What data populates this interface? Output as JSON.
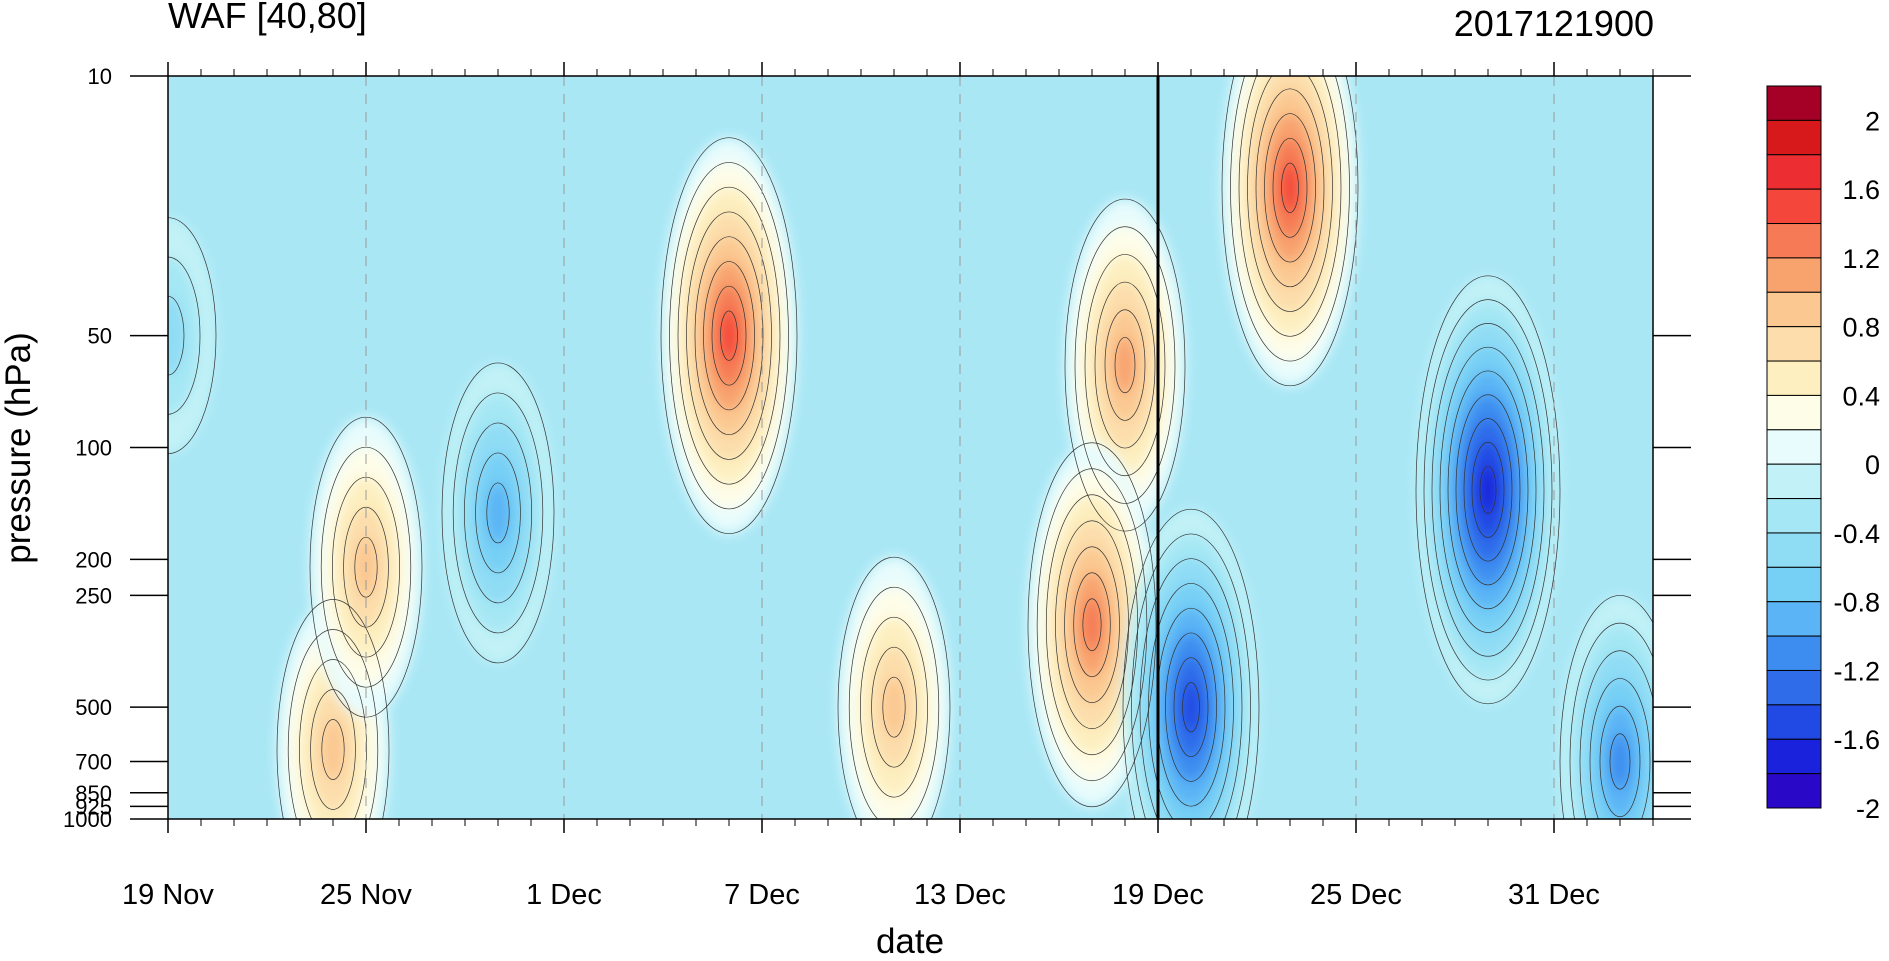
{
  "chart_data": {
    "type": "heatmap",
    "subtype": "filled-contour time-pressure cross-section",
    "title_left": "WAF [40,80]",
    "title_right": "2017121900",
    "xlabel": "date",
    "ylabel": "pressure (hPa)",
    "y_scale": "log",
    "y_inverted": true,
    "y_ticks": [
      10,
      50,
      100,
      200,
      250,
      500,
      700,
      850,
      925,
      1000
    ],
    "y_tick_labels": [
      "10",
      "50",
      "100",
      "200",
      "250",
      "500",
      "700",
      "850",
      "925",
      "1000"
    ],
    "x_ticks": [
      "19 Nov",
      "25 Nov",
      "1 Dec",
      "7 Dec",
      "13 Dec",
      "19 Dec",
      "25 Dec",
      "31 Dec"
    ],
    "x_start": "2017-11-19",
    "x_end": "2018-01-03",
    "analysis_line_date": "19 Dec",
    "grid": "dashed vertical lines at labelled dates",
    "colorbar": {
      "position": "right",
      "labels": [
        "2",
        "1.6",
        "1.2",
        "0.8",
        "0.4",
        "0",
        "-0.4",
        "-0.8",
        "-1.2",
        "-1.6",
        "-2"
      ],
      "levels": [
        2.2,
        2.0,
        1.8,
        1.6,
        1.4,
        1.2,
        1.0,
        0.8,
        0.6,
        0.4,
        0.2,
        0.0,
        -0.2,
        -0.4,
        -0.6,
        -0.8,
        -1.0,
        -1.2,
        -1.4,
        -1.6,
        -1.8,
        -2.0,
        -2.2
      ],
      "colors": [
        "#a50026",
        "#d7191c",
        "#ec2d32",
        "#f4463b",
        "#f67a55",
        "#f8a26e",
        "#fbc891",
        "#fcddab",
        "#fdefc0",
        "#fefde8",
        "#e8fcfd",
        "#c2f2f7",
        "#a5e7f4",
        "#8fdcf5",
        "#76cff5",
        "#5ab4f5",
        "#3d8df0",
        "#2f6cea",
        "#2149e4",
        "#1b22dc",
        "#2a08c8"
      ]
    },
    "features": [
      {
        "x": "2017-11-29",
        "p": 150,
        "value": -1.0
      },
      {
        "x": "2017-12-06",
        "p": 50,
        "value": 1.5
      },
      {
        "x": "2017-12-18",
        "p": 60,
        "value": 1.1
      },
      {
        "x": "2017-12-17",
        "p": 300,
        "value": 1.4
      },
      {
        "x": "2017-12-20",
        "p": 500,
        "value": -1.5
      },
      {
        "x": "2017-12-23",
        "p": 20,
        "value": 1.5
      },
      {
        "x": "2017-12-29",
        "p": 130,
        "value": -1.8
      },
      {
        "x": "2017-11-24",
        "p": 650,
        "value": 1.0
      },
      {
        "x": "2017-11-25",
        "p": 210,
        "value": 0.9
      },
      {
        "x": "2017-12-11",
        "p": 500,
        "value": 1.0
      },
      {
        "x": "2018-01-02",
        "p": 700,
        "value": -1.2
      },
      {
        "x": "2017-11-19",
        "p": 50,
        "value": -0.6
      }
    ]
  }
}
